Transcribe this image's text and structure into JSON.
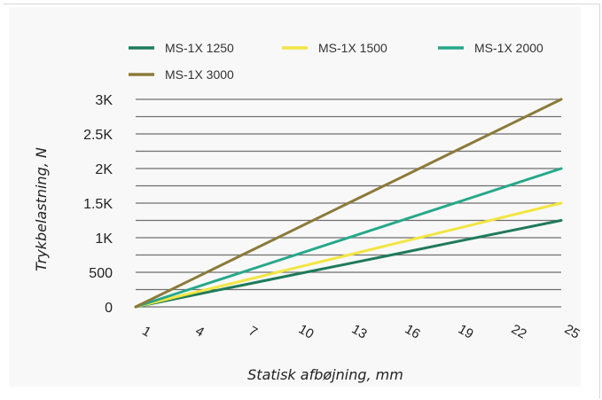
{
  "chart_data": {
    "type": "line",
    "x": [
      1,
      4,
      7,
      10,
      13,
      16,
      19,
      22,
      25
    ],
    "x_tick_labels": [
      "1",
      "4",
      "7",
      "10",
      "13",
      "16",
      "19",
      "22",
      "25"
    ],
    "xlim": [
      1,
      25
    ],
    "ylim": [
      0,
      3000
    ],
    "y_ticks": [
      0,
      500,
      1000,
      1500,
      2000,
      2500,
      3000
    ],
    "y_tick_labels": [
      "0",
      "500",
      "1K",
      "1.5K",
      "2K",
      "2.5K",
      "3K"
    ],
    "xlabel": "Statisk afbøjning, mm",
    "ylabel": "Trykbelastning, N",
    "grid": true,
    "legend_position": "top",
    "series": [
      {
        "name": "MS-1X 1250",
        "color": "#1f7a5a",
        "values": [
          0,
          156,
          313,
          469,
          625,
          781,
          938,
          1094,
          1250
        ]
      },
      {
        "name": "MS-1X 1500",
        "color": "#f2e641",
        "values": [
          0,
          188,
          375,
          563,
          750,
          938,
          1125,
          1313,
          1500
        ]
      },
      {
        "name": "MS-1X 2000",
        "color": "#25a88a",
        "values": [
          0,
          250,
          500,
          750,
          1000,
          1250,
          1500,
          1750,
          2000
        ]
      },
      {
        "name": "MS-1X 3000",
        "color": "#8c7a3a",
        "values": [
          0,
          375,
          750,
          1125,
          1500,
          1875,
          2250,
          2625,
          3000
        ]
      }
    ]
  }
}
